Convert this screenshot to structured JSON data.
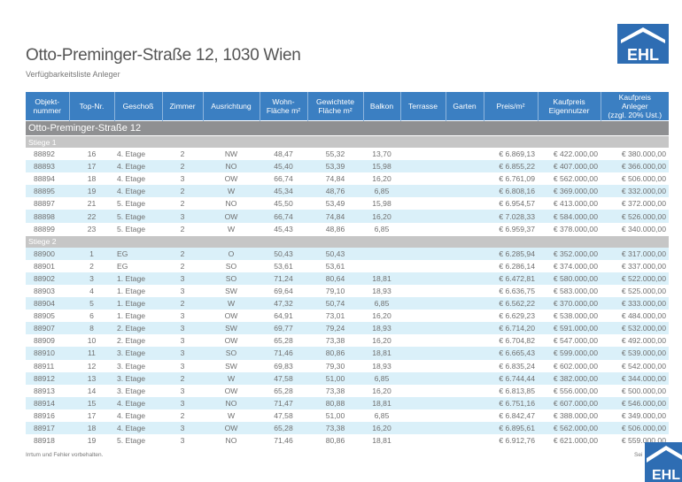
{
  "header": {
    "title": "Otto-Preminger-Straße 12, 1030 Wien",
    "subtitle": "Verfügbarkeitsliste Anleger",
    "logo_text": "EHL"
  },
  "colors": {
    "header_blue": "#3b7fc2",
    "logo_blue": "#2e6db3",
    "section_gray": "#8f9092",
    "stiege_gray": "#c6c6c6",
    "stripe_blue": "#daf0f9"
  },
  "table": {
    "columns": [
      "Objekt-\nnummer",
      "Top-Nr.",
      "Geschoß",
      "Zimmer",
      "Ausrichtung",
      "Wohn-\nFläche m²",
      "Gewichtete\nFläche m²",
      "Balkon",
      "Terrasse",
      "Garten",
      "Preis/m²",
      "Kaufpreis\nEigennutzer",
      "Kaufpreis\nAnleger\n(zzgl. 20% Ust.)"
    ],
    "section": "Otto-Preminger-Straße 12",
    "groups": [
      {
        "label": "Stiege 1",
        "rows": [
          [
            "88892",
            "16",
            "4. Etage",
            "2",
            "NW",
            "48,47",
            "55,32",
            "13,70",
            "",
            "",
            "€ 6.869,13",
            "€ 422.000,00",
            "€ 380.000,00"
          ],
          [
            "88893",
            "17",
            "4. Etage",
            "2",
            "NO",
            "45,40",
            "53,39",
            "15,98",
            "",
            "",
            "€ 6.855,22",
            "€ 407.000,00",
            "€ 366.000,00"
          ],
          [
            "88894",
            "18",
            "4. Etage",
            "3",
            "OW",
            "66,74",
            "74,84",
            "16,20",
            "",
            "",
            "€ 6.761,09",
            "€ 562.000,00",
            "€ 506.000,00"
          ],
          [
            "88895",
            "19",
            "4. Etage",
            "2",
            "W",
            "45,34",
            "48,76",
            "6,85",
            "",
            "",
            "€ 6.808,16",
            "€ 369.000,00",
            "€ 332.000,00"
          ],
          [
            "88897",
            "21",
            "5. Etage",
            "2",
            "NO",
            "45,50",
            "53,49",
            "15,98",
            "",
            "",
            "€ 6.954,57",
            "€ 413.000,00",
            "€ 372.000,00"
          ],
          [
            "88898",
            "22",
            "5. Etage",
            "3",
            "OW",
            "66,74",
            "74,84",
            "16,20",
            "",
            "",
            "€ 7.028,33",
            "€ 584.000,00",
            "€ 526.000,00"
          ],
          [
            "88899",
            "23",
            "5. Etage",
            "2",
            "W",
            "45,43",
            "48,86",
            "6,85",
            "",
            "",
            "€ 6.959,37",
            "€ 378.000,00",
            "€ 340.000,00"
          ]
        ]
      },
      {
        "label": "Stiege 2",
        "rows": [
          [
            "88900",
            "1",
            "EG",
            "2",
            "O",
            "50,43",
            "50,43",
            "",
            "",
            "",
            "€ 6.285,94",
            "€ 352.000,00",
            "€ 317.000,00"
          ],
          [
            "88901",
            "2",
            "EG",
            "2",
            "SO",
            "53,61",
            "53,61",
            "",
            "",
            "",
            "€ 6.286,14",
            "€ 374.000,00",
            "€ 337.000,00"
          ],
          [
            "88902",
            "3",
            "1. Etage",
            "3",
            "SO",
            "71,24",
            "80,64",
            "18,81",
            "",
            "",
            "€ 6.472,81",
            "€ 580.000,00",
            "€ 522.000,00"
          ],
          [
            "88903",
            "4",
            "1. Etage",
            "3",
            "SW",
            "69,64",
            "79,10",
            "18,93",
            "",
            "",
            "€ 6.636,75",
            "€ 583.000,00",
            "€ 525.000,00"
          ],
          [
            "88904",
            "5",
            "1. Etage",
            "2",
            "W",
            "47,32",
            "50,74",
            "6,85",
            "",
            "",
            "€ 6.562,22",
            "€ 370.000,00",
            "€ 333.000,00"
          ],
          [
            "88905",
            "6",
            "1. Etage",
            "3",
            "OW",
            "64,91",
            "73,01",
            "16,20",
            "",
            "",
            "€ 6.629,23",
            "€ 538.000,00",
            "€ 484.000,00"
          ],
          [
            "88907",
            "8",
            "2. Etage",
            "3",
            "SW",
            "69,77",
            "79,24",
            "18,93",
            "",
            "",
            "€ 6.714,20",
            "€ 591.000,00",
            "€ 532.000,00"
          ],
          [
            "88909",
            "10",
            "2. Etage",
            "3",
            "OW",
            "65,28",
            "73,38",
            "16,20",
            "",
            "",
            "€ 6.704,82",
            "€ 547.000,00",
            "€ 492.000,00"
          ],
          [
            "88910",
            "11",
            "3. Etage",
            "3",
            "SO",
            "71,46",
            "80,86",
            "18,81",
            "",
            "",
            "€ 6.665,43",
            "€ 599.000,00",
            "€ 539.000,00"
          ],
          [
            "88911",
            "12",
            "3. Etage",
            "3",
            "SW",
            "69,83",
            "79,30",
            "18,93",
            "",
            "",
            "€ 6.835,24",
            "€ 602.000,00",
            "€ 542.000,00"
          ],
          [
            "88912",
            "13",
            "3. Etage",
            "2",
            "W",
            "47,58",
            "51,00",
            "6,85",
            "",
            "",
            "€ 6.744,44",
            "€ 382.000,00",
            "€ 344.000,00"
          ],
          [
            "88913",
            "14",
            "3. Etage",
            "3",
            "OW",
            "65,28",
            "73,38",
            "16,20",
            "",
            "",
            "€ 6.813,85",
            "€ 556.000,00",
            "€ 500.000,00"
          ],
          [
            "88914",
            "15",
            "4. Etage",
            "3",
            "NO",
            "71,47",
            "80,88",
            "18,81",
            "",
            "",
            "€ 6.751,16",
            "€ 607.000,00",
            "€ 546.000,00"
          ],
          [
            "88916",
            "17",
            "4. Etage",
            "2",
            "W",
            "47,58",
            "51,00",
            "6,85",
            "",
            "",
            "€ 6.842,47",
            "€ 388.000,00",
            "€ 349.000,00"
          ],
          [
            "88917",
            "18",
            "4. Etage",
            "3",
            "OW",
            "65,28",
            "73,38",
            "16,20",
            "",
            "",
            "€ 6.895,61",
            "€ 562.000,00",
            "€ 506.000,00"
          ],
          [
            "88918",
            "19",
            "5. Etage",
            "3",
            "NO",
            "71,46",
            "80,86",
            "18,81",
            "",
            "",
            "€ 6.912,76",
            "€ 621.000,00",
            "€ 559.000,00"
          ]
        ]
      }
    ]
  },
  "footer": {
    "disclaimer": "Irrtum und Fehler vorbehalten.",
    "page_label": "Sei"
  }
}
